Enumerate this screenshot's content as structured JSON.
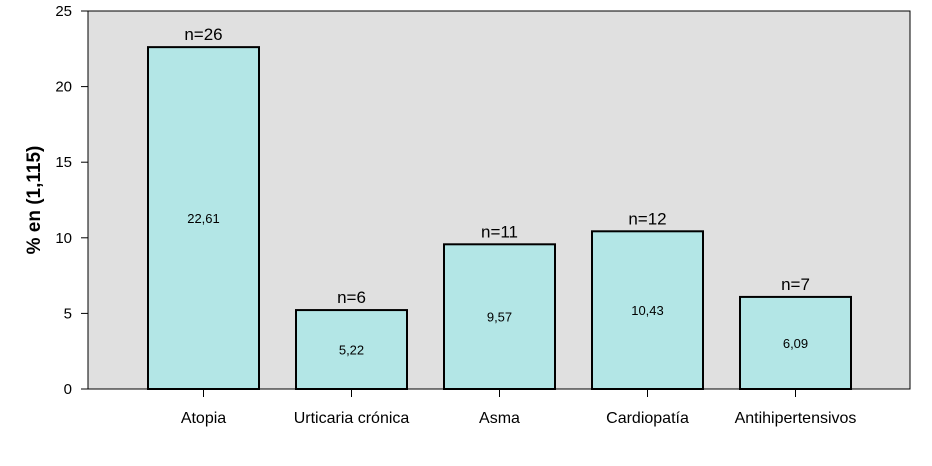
{
  "chart_data": {
    "type": "bar",
    "ylabel": "% en (1,115)",
    "xlabel": "",
    "ylim": [
      0,
      25
    ],
    "yticks": [
      0,
      5,
      10,
      15,
      20,
      25
    ],
    "grid": false,
    "categories": [
      "Atopia",
      "Urticaria crónica",
      "Asma",
      "Cardiopatía",
      "Antihipertensivos"
    ],
    "values": [
      22.61,
      5.22,
      9.57,
      10.43,
      6.09
    ],
    "value_labels": [
      "22,61",
      "5,22",
      "9,57",
      "10,43",
      "6,09"
    ],
    "count_labels": [
      "n=26",
      "n=6",
      "n=11",
      "n=12",
      "n=7"
    ],
    "colors": {
      "plot_background": "#e0e0e0",
      "bar_fill": "#b3e6e6",
      "bar_stroke": "#000000"
    }
  }
}
